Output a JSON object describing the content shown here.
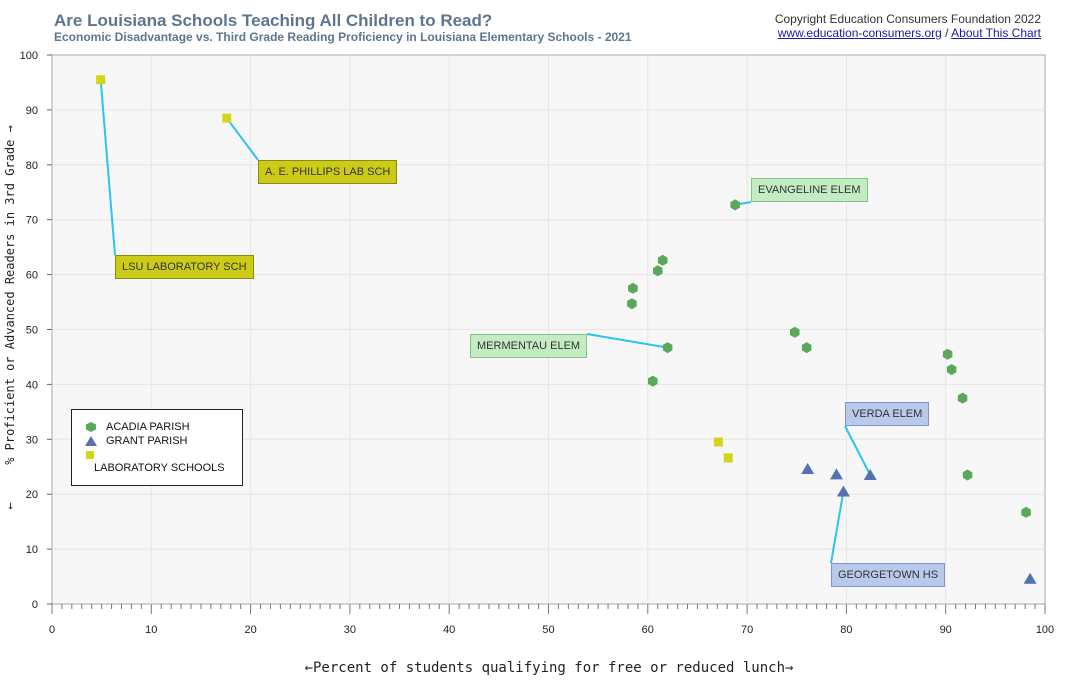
{
  "header": {
    "title": "Are Louisiana Schools Teaching All Children to Read?",
    "subtitle": "Economic Disadvantage vs. Third Grade Reading Proficiency in Louisiana Elementary Schools - 2021",
    "copyright": "Copyright Education Consumers Foundation 2022",
    "site_link": "www.education-consumers.org",
    "separator": "/",
    "about_link": "About This Chart"
  },
  "colors": {
    "acadia": "#5aa85a",
    "grant": "#5471b0",
    "lab": "#d4d41a",
    "leader": "#29c5f0",
    "plot_bg": "#f7f7f7",
    "grid": "#e6e6e6"
  },
  "chart_data": {
    "type": "scatter",
    "xlabel": "←Percent of students qualifying for free or reduced lunch→",
    "ylabel": "% Proficient or Advanced Readers in 3rd Grade →",
    "ylabel_arrow": "←",
    "xlim": [
      0,
      100
    ],
    "ylim": [
      0,
      100
    ],
    "x_ticks": [
      "0",
      "10",
      "20",
      "30",
      "40",
      "50",
      "60",
      "70",
      "80",
      "90",
      "100"
    ],
    "y_ticks": [
      "0",
      "10",
      "20",
      "30",
      "40",
      "50",
      "60",
      "70",
      "80",
      "90",
      "100"
    ],
    "grid": true,
    "legend_position": "bottom-left",
    "series": [
      {
        "name": "ACADIA PARISH",
        "marker": "hexagon",
        "points": [
          {
            "x": 68.8,
            "y": 72.7
          },
          {
            "x": 61.5,
            "y": 62.6
          },
          {
            "x": 61.0,
            "y": 60.7
          },
          {
            "x": 58.5,
            "y": 57.5
          },
          {
            "x": 58.4,
            "y": 54.7
          },
          {
            "x": 62.0,
            "y": 46.7
          },
          {
            "x": 60.5,
            "y": 40.6
          },
          {
            "x": 74.8,
            "y": 49.5
          },
          {
            "x": 76.0,
            "y": 46.7
          },
          {
            "x": 90.2,
            "y": 45.5
          },
          {
            "x": 90.6,
            "y": 42.7
          },
          {
            "x": 91.7,
            "y": 37.5
          },
          {
            "x": 92.2,
            "y": 23.5
          },
          {
            "x": 98.1,
            "y": 16.7
          }
        ]
      },
      {
        "name": "GRANT PARISH",
        "marker": "triangle",
        "points": [
          {
            "x": 76.1,
            "y": 24.6
          },
          {
            "x": 79.0,
            "y": 23.6
          },
          {
            "x": 79.7,
            "y": 20.5
          },
          {
            "x": 82.4,
            "y": 23.5
          },
          {
            "x": 98.5,
            "y": 4.6
          }
        ]
      },
      {
        "name": "LABORATORY SCHOOLS",
        "marker": "square",
        "points": [
          {
            "x": 4.9,
            "y": 95.5
          },
          {
            "x": 17.6,
            "y": 88.5
          },
          {
            "x": 67.1,
            "y": 29.5
          },
          {
            "x": 68.1,
            "y": 26.6
          }
        ]
      }
    ],
    "annotations": [
      {
        "text": "LSU LABORATORY SCH",
        "series": 2,
        "point": 0
      },
      {
        "text": "A. E. PHILLIPS LAB SCH",
        "series": 2,
        "point": 1
      },
      {
        "text": "EVANGELINE ELEM",
        "series": 0,
        "point": 0
      },
      {
        "text": "MERMENTAU ELEM",
        "series": 0,
        "point": 5
      },
      {
        "text": "VERDA ELEM",
        "series": 1,
        "point": 3
      },
      {
        "text": "GEORGETOWN HS",
        "series": 1,
        "point": 2
      }
    ]
  }
}
